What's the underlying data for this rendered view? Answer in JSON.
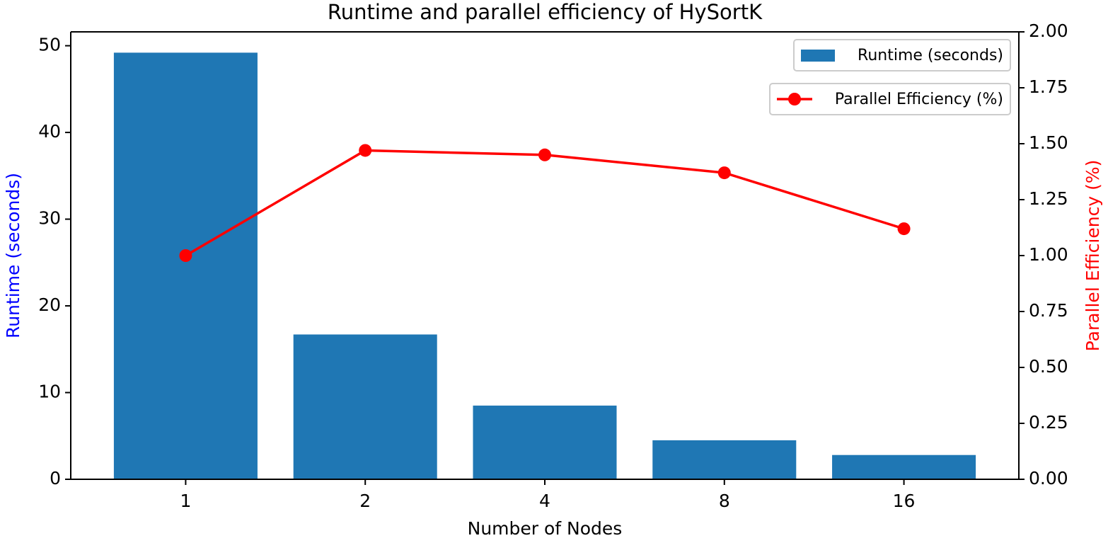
{
  "chart_data": {
    "type": "bar_line",
    "title": "Runtime and parallel efficiency of HySortK",
    "x_label": "Number of Nodes",
    "y_label": "Runtime (seconds)",
    "y2_label": "Parallel Efficiency (%)",
    "categories": [
      "1",
      "2",
      "4",
      "8",
      "16"
    ],
    "series": [
      {
        "name": "Runtime (seconds)",
        "type": "bar",
        "color": "#1f77b4",
        "values": [
          49.2,
          16.7,
          8.5,
          4.5,
          2.8
        ]
      },
      {
        "name": "Parallel Efficiency (%)",
        "type": "line",
        "axis": "y2",
        "color": "#ff0000",
        "values": [
          1.0,
          1.47,
          1.45,
          1.37,
          1.12
        ]
      }
    ],
    "ylim": [
      0,
      51.6
    ],
    "yticks": [
      0,
      10,
      20,
      30,
      40,
      50
    ],
    "y2lim": [
      0,
      2.0
    ],
    "y2ticks": [
      {
        "value": 0,
        "label": "0.00"
      },
      {
        "value": 0.25,
        "label": "0.25"
      },
      {
        "value": 0.5,
        "label": "0.50"
      },
      {
        "value": 0.75,
        "label": "0.75"
      },
      {
        "value": 1.0,
        "label": "1.00"
      },
      {
        "value": 1.25,
        "label": "1.25"
      },
      {
        "value": 1.5,
        "label": "1.50"
      },
      {
        "value": 1.75,
        "label": "1.75"
      },
      {
        "value": 2.0,
        "label": "2.00"
      }
    ],
    "legend": "upper right"
  }
}
